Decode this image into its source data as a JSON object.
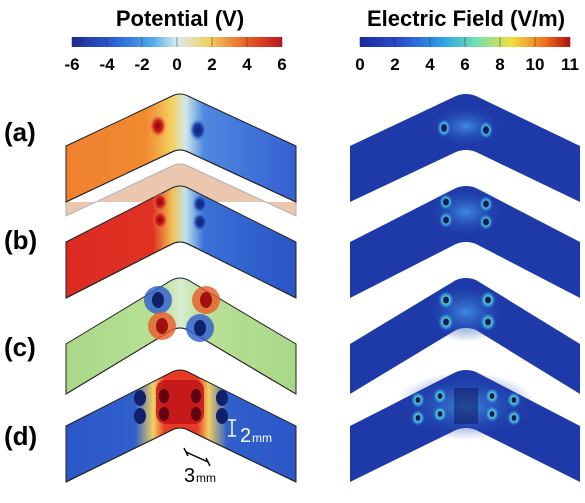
{
  "panels": {
    "left": {
      "title": "Potential (V)",
      "ticks": [
        "-6",
        "-4",
        "-2",
        "0",
        "2",
        "4",
        "6"
      ],
      "colormap": [
        "#1e2a8c",
        "#2c5fd8",
        "#4fa8e8",
        "#d8ecf0",
        "#f3d060",
        "#e8652a",
        "#c0141a"
      ]
    },
    "right": {
      "title": "Electric Field (V/m)",
      "ticks": [
        "0",
        "2",
        "4",
        "6",
        "8",
        "10",
        "11"
      ],
      "colormap": [
        "#1a2a9c",
        "#2a4fd0",
        "#2fa3e8",
        "#6fe0b0",
        "#f0e040",
        "#f07020",
        "#b01010"
      ]
    }
  },
  "rows": [
    {
      "label": "(a)",
      "left_fill": "#f08a30",
      "right_fill": "#1e3aa8"
    },
    {
      "label": "(b)",
      "left_fill": "#dc2a22",
      "right_fill": "#1e3aa8"
    },
    {
      "label": "(c)",
      "left_fill": "#a8d888",
      "right_fill": "#1e3aa8"
    },
    {
      "label": "(d)",
      "left_fill": "#2c56c8",
      "right_fill": "#1e3aa8"
    }
  ],
  "scalebars": {
    "thickness_value": "2",
    "thickness_unit": "mm",
    "length_value": "3",
    "length_unit": "mm"
  }
}
